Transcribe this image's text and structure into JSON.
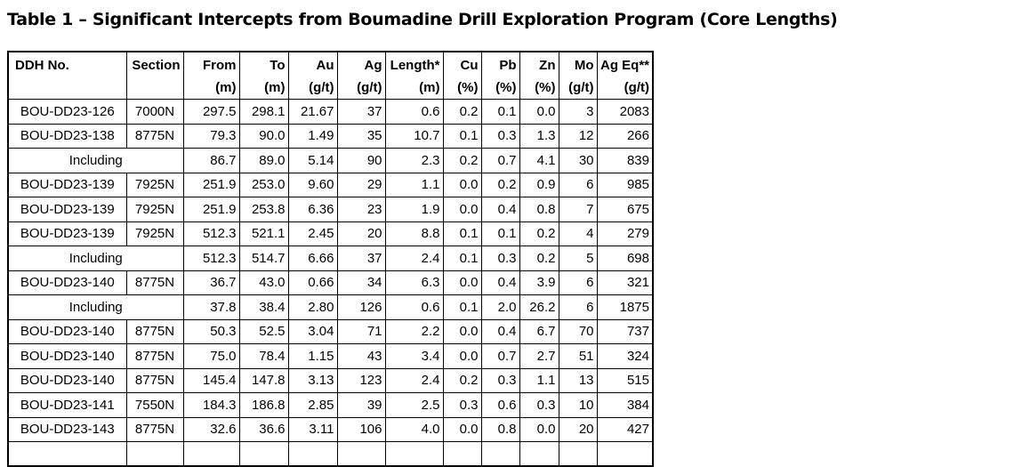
{
  "title": "Table 1 – Significant Intercepts from Boumadine Drill Exploration Program (Core Lengths)",
  "colors": {
    "background": "#ffffff",
    "text": "#000000",
    "table_border": "#000000"
  },
  "table": {
    "columns": [
      {
        "name": "DDH No.",
        "unit": "",
        "bold": true,
        "align": "left"
      },
      {
        "name": "Section",
        "unit": "",
        "bold": true,
        "align": "right"
      },
      {
        "name": "From",
        "unit": "(m)",
        "bold": true,
        "align": "right"
      },
      {
        "name": "To",
        "unit": "(m)",
        "bold": true,
        "align": "right"
      },
      {
        "name": "Au",
        "unit": "(g/t)",
        "bold": false,
        "align": "right"
      },
      {
        "name": "Ag",
        "unit": "(g/t)",
        "bold": false,
        "align": "right"
      },
      {
        "name": "Length*",
        "unit": "(m)",
        "bold": true,
        "align": "right"
      },
      {
        "name": "Cu",
        "unit": "(%)",
        "bold": true,
        "align": "right"
      },
      {
        "name": "Pb",
        "unit": "(%)",
        "bold": true,
        "align": "right"
      },
      {
        "name": "Zn",
        "unit": "(%)",
        "bold": true,
        "align": "right"
      },
      {
        "name": "Mo",
        "unit": "(g/t)",
        "bold": true,
        "align": "right"
      },
      {
        "name": "Ag Eq**",
        "unit": "(g/t)",
        "bold": true,
        "align": "right"
      }
    ],
    "rows": [
      {
        "type": "data",
        "ddh": "BOU-DD23-126",
        "section": "7000N",
        "values": [
          "297.5",
          "298.1",
          "21.67",
          "37",
          "0.6",
          "0.2",
          "0.1",
          "0.0",
          "3",
          "2083"
        ]
      },
      {
        "type": "data",
        "ddh": "BOU-DD23-138",
        "section": "8775N",
        "values": [
          "79.3",
          "90.0",
          "1.49",
          "35",
          "10.7",
          "0.1",
          "0.3",
          "1.3",
          "12",
          "266"
        ]
      },
      {
        "type": "including",
        "label": "Including",
        "values": [
          "86.7",
          "89.0",
          "5.14",
          "90",
          "2.3",
          "0.2",
          "0.7",
          "4.1",
          "30",
          "839"
        ]
      },
      {
        "type": "data",
        "ddh": "BOU-DD23-139",
        "section": "7925N",
        "values": [
          "251.9",
          "253.0",
          "9.60",
          "29",
          "1.1",
          "0.0",
          "0.2",
          "0.9",
          "6",
          "985"
        ]
      },
      {
        "type": "data",
        "ddh": "BOU-DD23-139",
        "section": "7925N",
        "values": [
          "251.9",
          "253.8",
          "6.36",
          "23",
          "1.9",
          "0.0",
          "0.4",
          "0.8",
          "7",
          "675"
        ]
      },
      {
        "type": "data",
        "ddh": "BOU-DD23-139",
        "section": "7925N",
        "values": [
          "512.3",
          "521.1",
          "2.45",
          "20",
          "8.8",
          "0.1",
          "0.1",
          "0.2",
          "4",
          "279"
        ]
      },
      {
        "type": "including",
        "label": "Including",
        "values": [
          "512.3",
          "514.7",
          "6.66",
          "37",
          "2.4",
          "0.1",
          "0.3",
          "0.2",
          "5",
          "698"
        ]
      },
      {
        "type": "data",
        "ddh": "BOU-DD23-140",
        "section": "8775N",
        "values": [
          "36.7",
          "43.0",
          "0.66",
          "34",
          "6.3",
          "0.0",
          "0.4",
          "3.9",
          "6",
          "321"
        ]
      },
      {
        "type": "including",
        "label": "Including",
        "values": [
          "37.8",
          "38.4",
          "2.80",
          "126",
          "0.6",
          "0.1",
          "2.0",
          "26.2",
          "6",
          "1875"
        ]
      },
      {
        "type": "data",
        "ddh": "BOU-DD23-140",
        "section": "8775N",
        "values": [
          "50.3",
          "52.5",
          "3.04",
          "71",
          "2.2",
          "0.0",
          "0.4",
          "6.7",
          "70",
          "737"
        ]
      },
      {
        "type": "data",
        "ddh": "BOU-DD23-140",
        "section": "8775N",
        "values": [
          "75.0",
          "78.4",
          "1.15",
          "43",
          "3.4",
          "0.0",
          "0.7",
          "2.7",
          "51",
          "324"
        ]
      },
      {
        "type": "data",
        "ddh": "BOU-DD23-140",
        "section": "8775N",
        "values": [
          "145.4",
          "147.8",
          "3.13",
          "123",
          "2.4",
          "0.2",
          "0.3",
          "1.1",
          "13",
          "515"
        ]
      },
      {
        "type": "data",
        "ddh": "BOU-DD23-141",
        "section": "7550N",
        "values": [
          "184.3",
          "186.8",
          "2.85",
          "39",
          "2.5",
          "0.3",
          "0.6",
          "0.3",
          "10",
          "384"
        ]
      },
      {
        "type": "data",
        "ddh": "BOU-DD23-143",
        "section": "8775N",
        "values": [
          "32.6",
          "36.6",
          "3.11",
          "106",
          "4.0",
          "0.0",
          "0.8",
          "0.0",
          "20",
          "427"
        ]
      }
    ]
  }
}
